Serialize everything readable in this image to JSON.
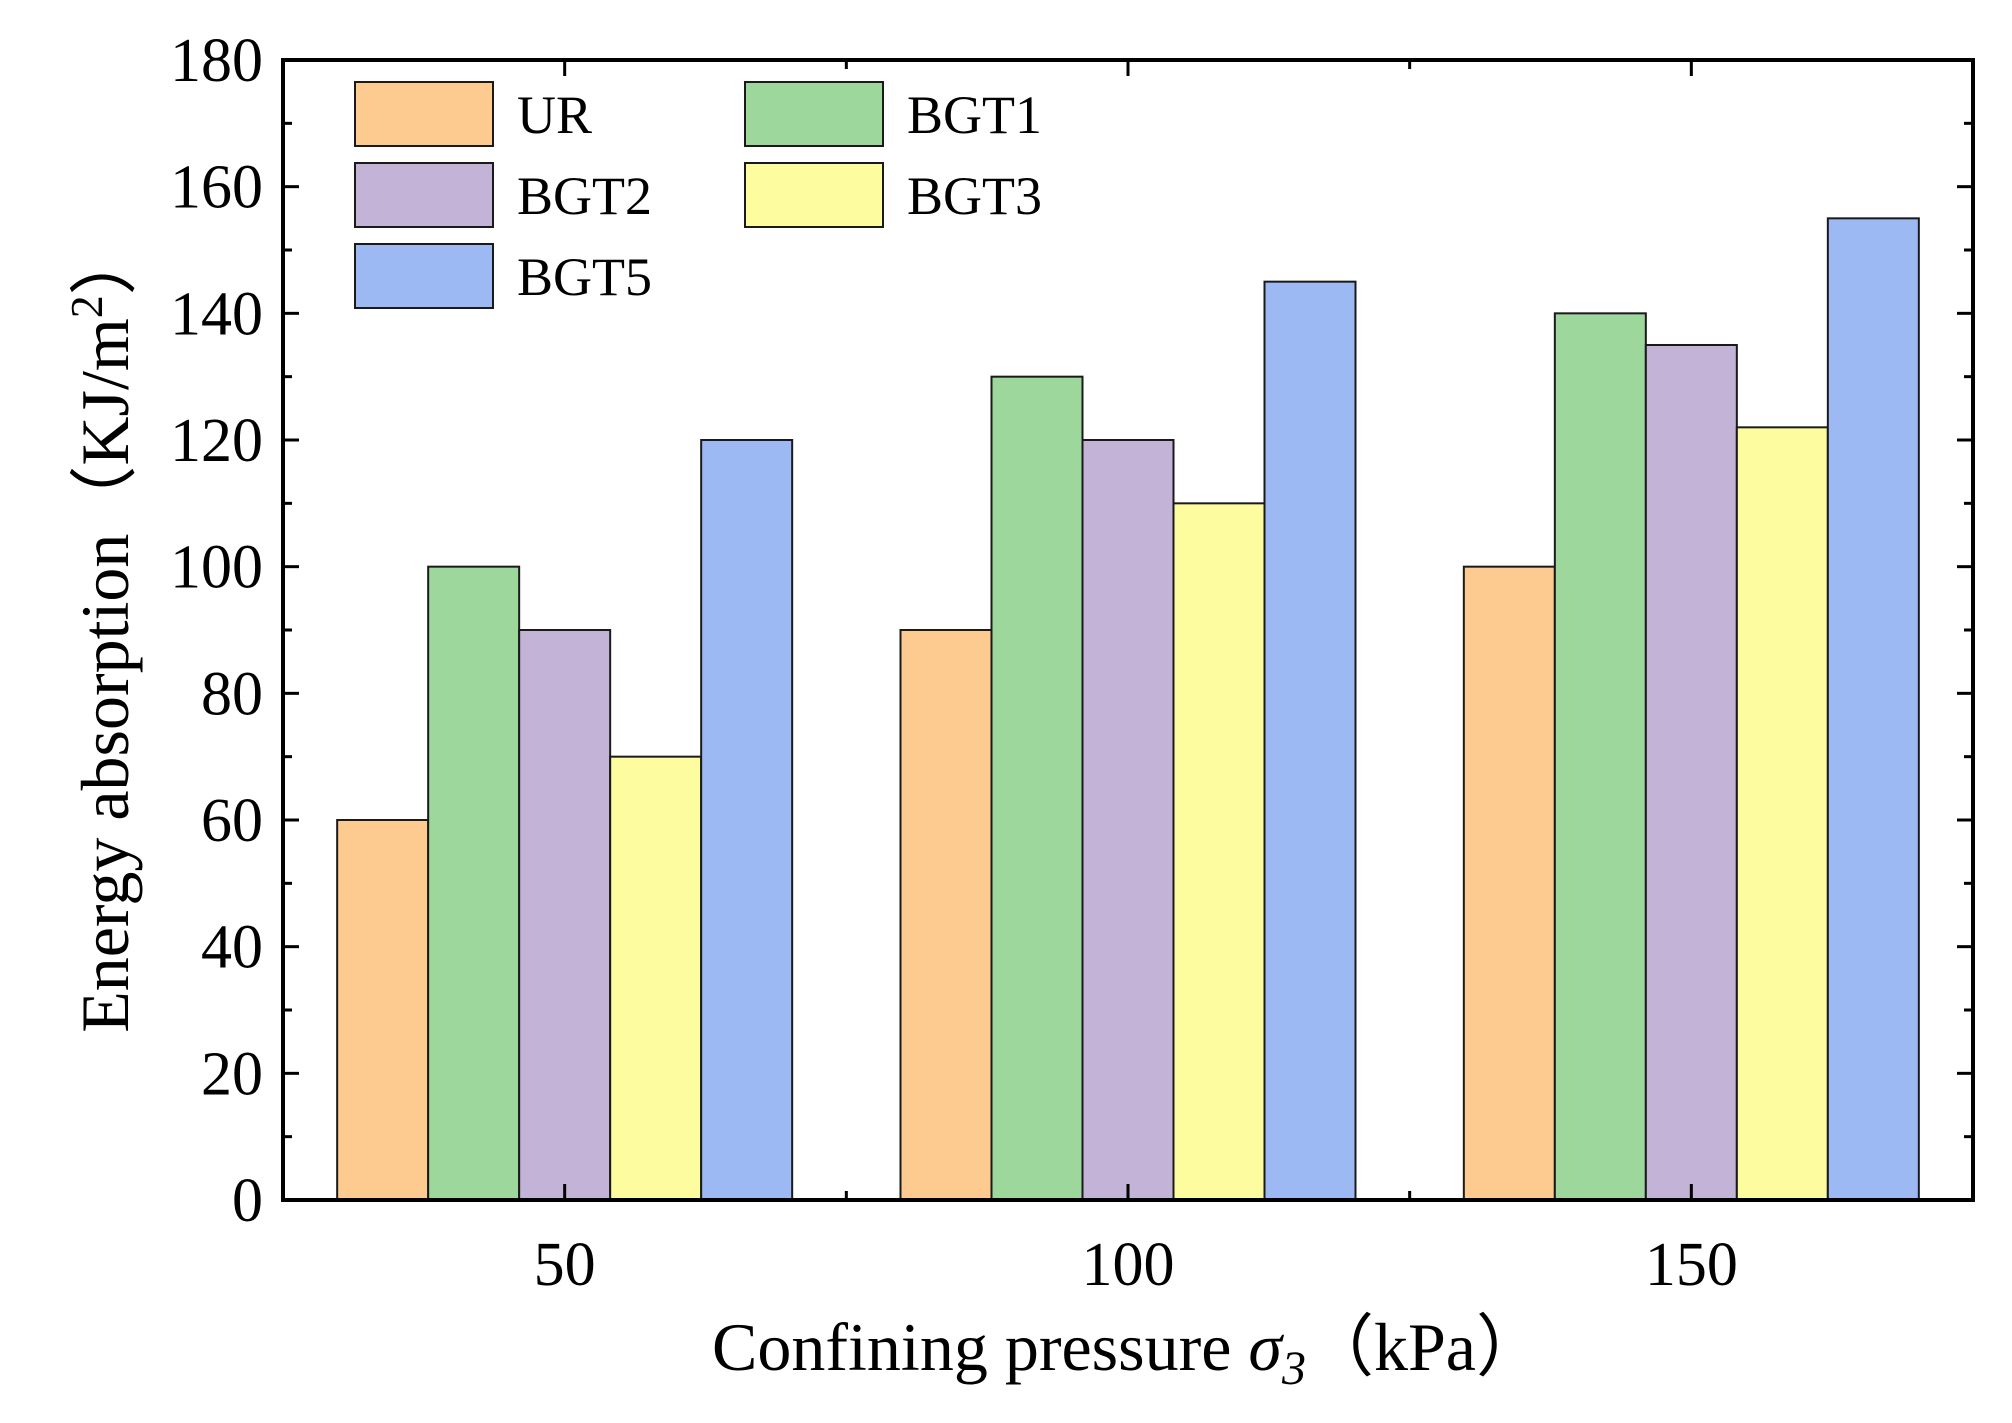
{
  "chart_data": {
    "type": "bar",
    "title": "",
    "categories": [
      "50",
      "100",
      "150"
    ],
    "series": [
      {
        "name": "UR",
        "color": "#FDCB8F",
        "values": [
          60,
          90,
          100
        ]
      },
      {
        "name": "BGT1",
        "color": "#9DD79B",
        "values": [
          100,
          130,
          140
        ]
      },
      {
        "name": "BGT2",
        "color": "#C3B3D7",
        "values": [
          90,
          120,
          135
        ]
      },
      {
        "name": "BGT3",
        "color": "#FDFDA0",
        "values": [
          70,
          110,
          122
        ]
      },
      {
        "name": "BGT5",
        "color": "#9DB9F3",
        "values": [
          120,
          145,
          155
        ]
      }
    ],
    "xlabel": {
      "prefix": "Confining pressure ",
      "symbol": "σ",
      "subscript": "3",
      "suffix": "（kPa）"
    },
    "ylabel": {
      "main": "Energy absorption（KJ/m",
      "superscript": "2",
      "close": "）"
    },
    "ylim": [
      0,
      180
    ],
    "yticks": [
      0,
      20,
      40,
      60,
      80,
      100,
      120,
      140,
      160,
      180
    ],
    "grid": false,
    "legend_position": "top-left"
  }
}
